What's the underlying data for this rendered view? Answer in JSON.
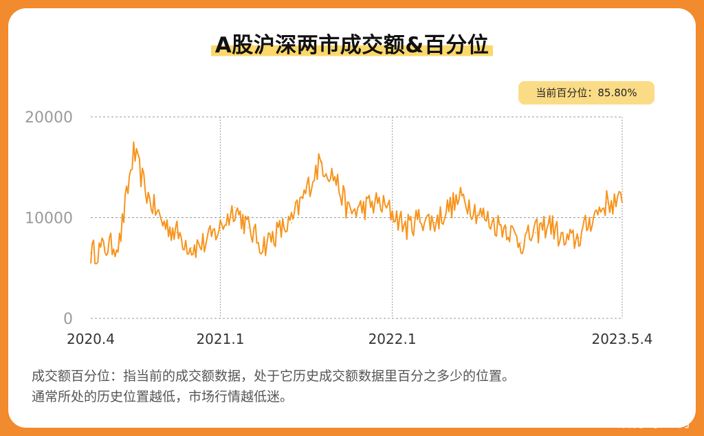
{
  "chart_data": {
    "type": "line",
    "title": "A股沪深两市成交额&百分位",
    "badge": "当前百分位：85.80%",
    "y_ticks": [
      "20000",
      "10000",
      "0"
    ],
    "ylim": [
      0,
      20000
    ],
    "x_tick_labels": [
      "2020.4",
      "2021.1",
      "2022.1",
      "2023.5.4"
    ],
    "x_range": [
      "2020-04",
      "2023-05-04"
    ],
    "grid": "dashed",
    "line_color": "#f7941d",
    "x": [
      "2020-04",
      "2020-05",
      "2020-06",
      "2020-07",
      "2020-08",
      "2020-09",
      "2020-10",
      "2020-11",
      "2020-12",
      "2021-01",
      "2021-02",
      "2021-03",
      "2021-04",
      "2021-05",
      "2021-06",
      "2021-07",
      "2021-08",
      "2021-09",
      "2021-10",
      "2021-11",
      "2021-12",
      "2022-01",
      "2022-02",
      "2022-03",
      "2022-04",
      "2022-05",
      "2022-06",
      "2022-07",
      "2022-08",
      "2022-09",
      "2022-10",
      "2022-11",
      "2022-12",
      "2023-01",
      "2023-02",
      "2023-03",
      "2023-04",
      "2023-05"
    ],
    "series": [
      {
        "values": [
          6500,
          7000,
          7500,
          16500,
          12000,
          9500,
          8500,
          7000,
          7500,
          9000,
          11000,
          9000,
          7200,
          8500,
          9500,
          12500,
          15500,
          14000,
          10500,
          11000,
          11500,
          10500,
          9000,
          10000,
          9500,
          11000,
          12000,
          10500,
          9500,
          9000,
          7500,
          8500,
          9500,
          7500,
          8000,
          10000,
          11500,
          11500
        ]
      }
    ]
  },
  "note_lines": [
    "成交额百分位：指当前的成交额数据，处于它历史成交额数据里百分之多少的位置。",
    "通常所处的历史位置越低，市场行情越低迷。"
  ],
  "watermark": "银行螺丝钉"
}
